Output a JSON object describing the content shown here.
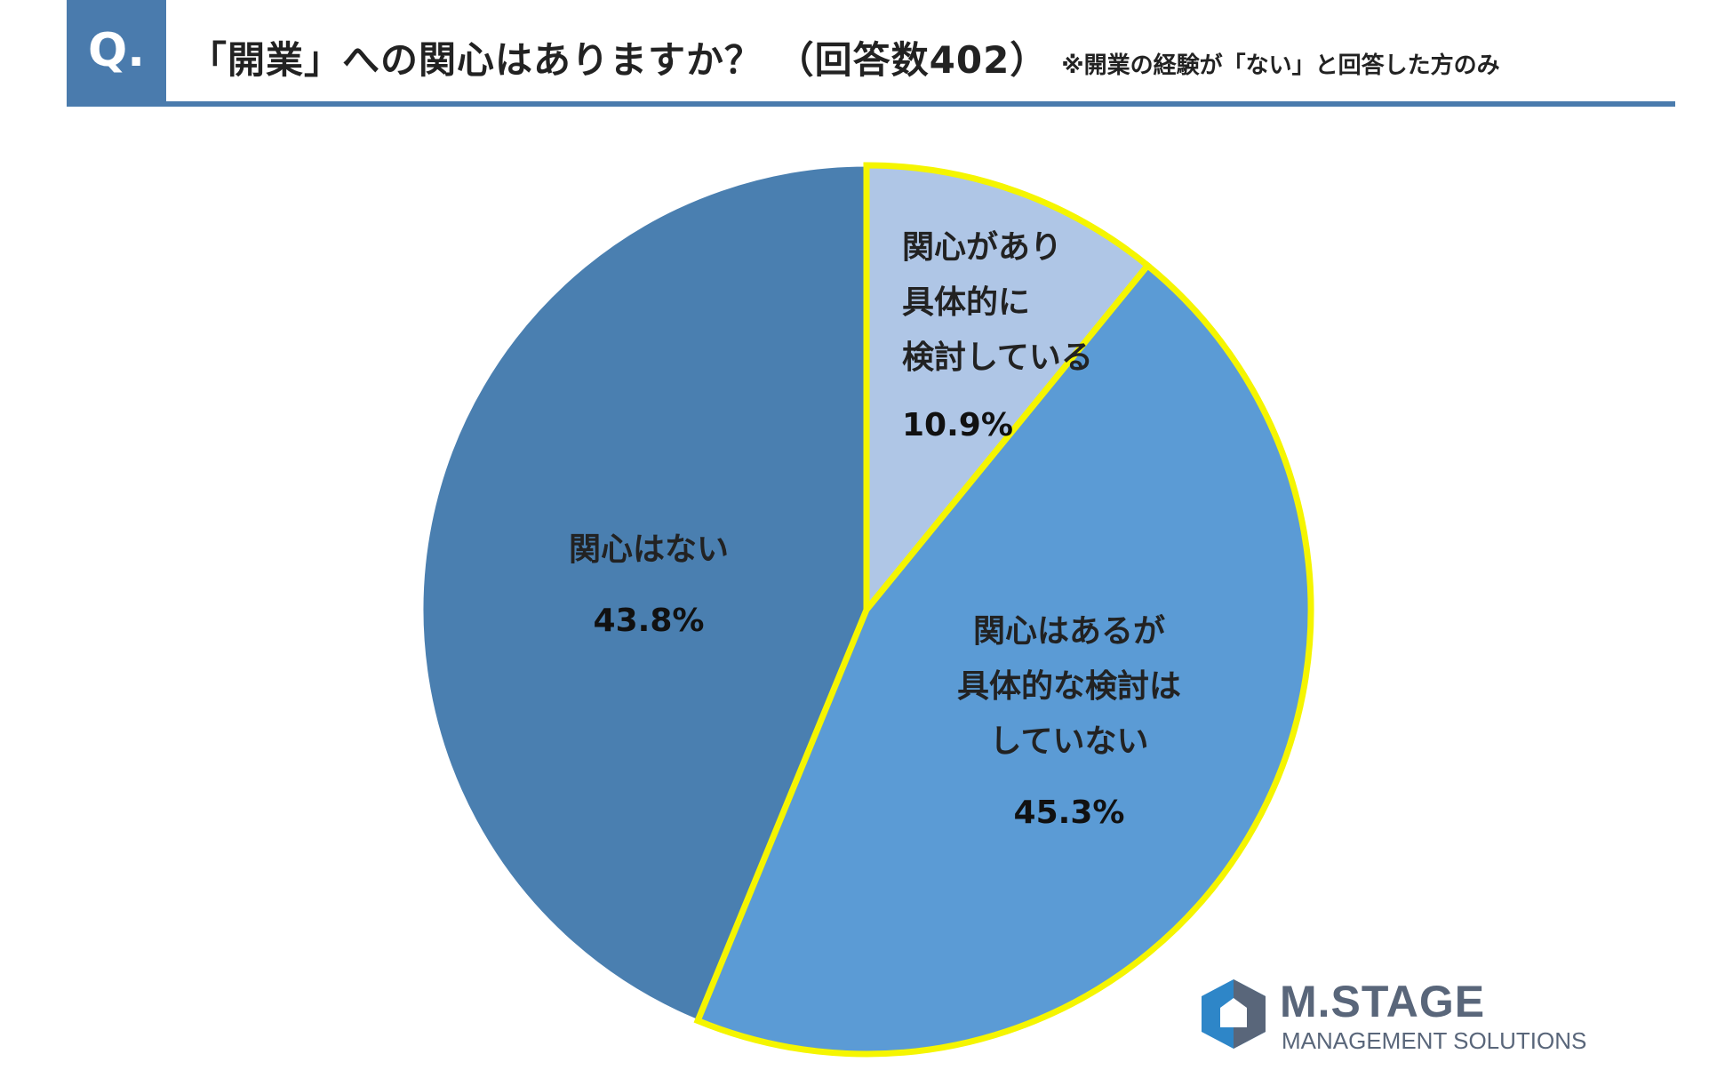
{
  "header": {
    "q_label": "Q.",
    "title": "「開業」への関心はありますか？ （回答数402）",
    "note": "※開業の経験が「ない」と回答した方のみ"
  },
  "chart_data": {
    "type": "pie",
    "title": "「開業」への関心はありますか？ （回答数402）",
    "start_angle_deg": 0,
    "direction": "clockwise",
    "slices": [
      {
        "label_lines": [
          "関心があり",
          "具体的に",
          "検討している"
        ],
        "value": 10.9,
        "value_label": "10.9%",
        "color": "#afc6e6",
        "highlighted": true
      },
      {
        "label_lines": [
          "関心はあるが",
          "具体的な検討は",
          "していない"
        ],
        "value": 45.3,
        "value_label": "45.3%",
        "color": "#5b9bd5",
        "highlighted": true
      },
      {
        "label_lines": [
          "関心はない"
        ],
        "value": 43.8,
        "value_label": "43.8%",
        "color": "#4a7fb0",
        "highlighted": false
      }
    ],
    "highlight_color": "#f5f500",
    "legend": "none"
  },
  "logo": {
    "name": "M.STAGE",
    "tagline": "MANAGEMENT SOLUTIONS",
    "colors": {
      "blue": "#2e86c8",
      "gray": "#59667a"
    }
  }
}
